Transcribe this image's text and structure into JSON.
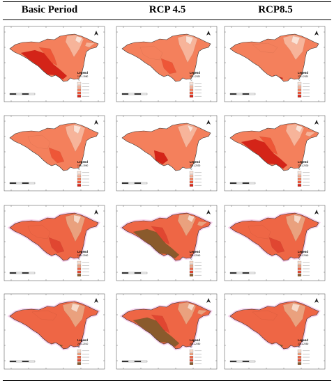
{
  "headers": [
    "Basic Period",
    "RCP 4.5",
    "RCP8.5"
  ],
  "legend_title": "Legend",
  "legend_unit": "°C",
  "palettes": {
    "red": [
      "#fbe2d6",
      "#f7b49a",
      "#f4805c",
      "#ee5637",
      "#d42418"
    ],
    "mix": [
      "#f8d9c8",
      "#eaa17e",
      "#ee6645",
      "#e04631",
      "#8a5a2c"
    ]
  },
  "panels": [
    {
      "period": "1971-1980",
      "variant": "A",
      "pal": "red"
    },
    {
      "period": "2011-2020",
      "variant": "B",
      "pal": "red"
    },
    {
      "period": "2011-2020",
      "variant": "C",
      "pal": "red"
    },
    {
      "period": "1981-1990",
      "variant": "B",
      "pal": "red"
    },
    {
      "period": "2021-2030",
      "variant": "D",
      "pal": "red"
    },
    {
      "period": "2021-2030",
      "variant": "A",
      "pal": "red"
    },
    {
      "period": "1991-2000",
      "variant": "B",
      "pal": "mix"
    },
    {
      "period": "2031-2040",
      "variant": "A",
      "pal": "mix"
    },
    {
      "period": "2031-2040",
      "variant": "B",
      "pal": "mix"
    },
    {
      "period": "2001-2010",
      "variant": "C",
      "pal": "mix"
    },
    {
      "period": "2041-2050",
      "variant": "A",
      "pal": "mix"
    },
    {
      "period": "2041-2050",
      "variant": "C",
      "pal": "mix"
    }
  ]
}
